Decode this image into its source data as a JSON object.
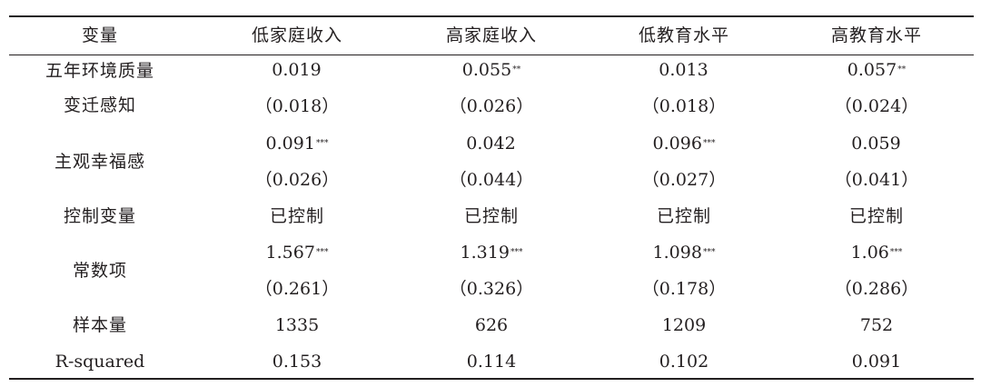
{
  "table": {
    "header": {
      "var": "变量",
      "cols": [
        "低家庭收入",
        "高家庭收入",
        "低教育水平",
        "高教育水平"
      ]
    },
    "rows": [
      {
        "label_line1": "五年环境质量",
        "label_line2": "变迁感知",
        "coef": [
          {
            "value": "0.019",
            "stars": ""
          },
          {
            "value": "0.055",
            "stars": "**"
          },
          {
            "value": "0.013",
            "stars": ""
          },
          {
            "value": "0.057",
            "stars": "**"
          }
        ],
        "se": [
          "（0.018）",
          "（0.026）",
          "（0.018）",
          "（0.024）"
        ]
      },
      {
        "label": "主观幸福感",
        "coef": [
          {
            "value": "0.091",
            "stars": "***"
          },
          {
            "value": "0.042",
            "stars": ""
          },
          {
            "value": "0.096",
            "stars": "***"
          },
          {
            "value": "0.059",
            "stars": ""
          }
        ],
        "se": [
          "（0.026）",
          "（0.044）",
          "（0.027）",
          "（0.041）"
        ]
      },
      {
        "label": "控制变量",
        "values": [
          "已控制",
          "已控制",
          "已控制",
          "已控制"
        ]
      },
      {
        "label": "常数项",
        "coef": [
          {
            "value": "1.567",
            "stars": "***"
          },
          {
            "value": "1.319",
            "stars": "***"
          },
          {
            "value": "1.098",
            "stars": "***"
          },
          {
            "value": "1.06",
            "stars": "***"
          }
        ],
        "se": [
          "（0.261）",
          "（0.326）",
          "（0.178）",
          "（0.286）"
        ]
      },
      {
        "label": "样本量",
        "values": [
          "1335",
          "626",
          "1209",
          "752"
        ]
      },
      {
        "label": "R-squared",
        "values": [
          "0.153",
          "0.114",
          "0.102",
          "0.091"
        ]
      }
    ]
  }
}
